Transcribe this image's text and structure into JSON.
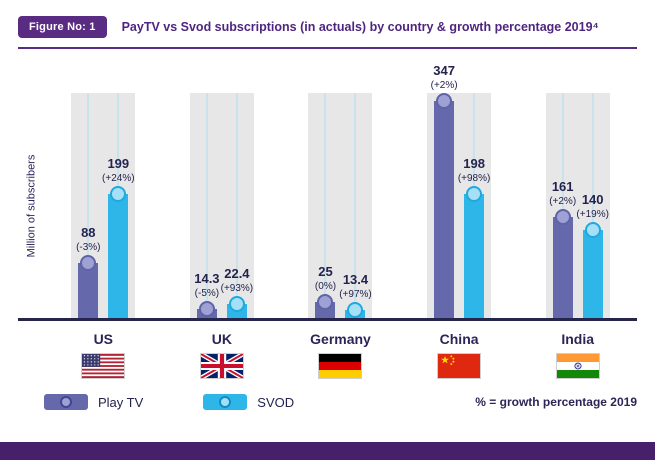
{
  "header": {
    "figure_label": "Figure No: 1",
    "title": "PayTV vs Svod subscriptions (in actuals) by country & growth percentage 2019⁴"
  },
  "chart_data": {
    "type": "bar",
    "title": "PayTV vs Svod subscriptions (in actuals) by country & growth percentage 2019",
    "ylabel": "Million of subscribers",
    "ylim": [
      0,
      360
    ],
    "grid": false,
    "legend_position": "bottom",
    "categories": [
      "US",
      "UK",
      "Germany",
      "China",
      "India"
    ],
    "flag_icons": [
      "us-flag-icon",
      "uk-flag-icon",
      "germany-flag-icon",
      "china-flag-icon",
      "india-flag-icon"
    ],
    "series": [
      {
        "name": "Play TV",
        "color": "#6568ab",
        "values": [
          88,
          14.3,
          25,
          347,
          161
        ],
        "growth": [
          "(-3%)",
          "(-5%)",
          "(0%)",
          "(+2%)",
          "(+2%)"
        ]
      },
      {
        "name": "SVOD",
        "color": "#2eb6e8",
        "values": [
          199,
          22.4,
          13.4,
          198,
          140
        ],
        "growth": [
          "(+24%)",
          "(+93%)",
          "(+97%)",
          "(+98%)",
          "(+19%)"
        ]
      }
    ],
    "legend_note": "% = growth percentage 2019"
  },
  "colors": {
    "brand_purple": "#5a2b82",
    "playtv_bar": "#6568ab",
    "svod_bar": "#2eb6e8",
    "band_gray": "#e7e7e7",
    "footer_strip": "#47206b"
  }
}
